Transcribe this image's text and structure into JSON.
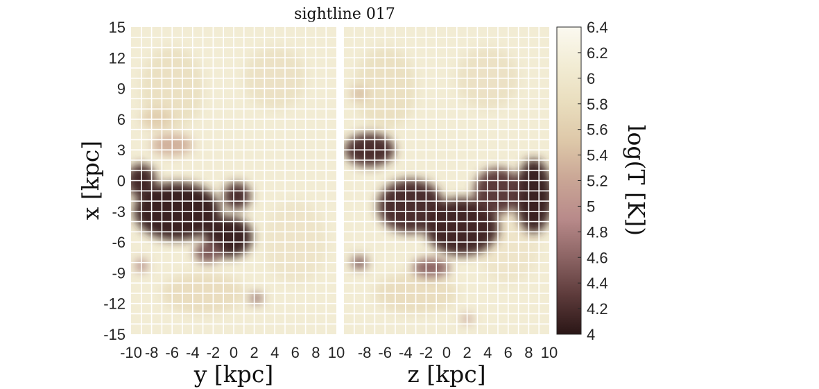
{
  "chart_data": {
    "type": "heatmap",
    "title": "sightline 017",
    "colorbar": {
      "label": "log(T [K])",
      "range": [
        4,
        6.4
      ],
      "ticks": [
        "4",
        "4.2",
        "4.4",
        "4.6",
        "4.8",
        "5",
        "5.2",
        "5.4",
        "5.6",
        "5.8",
        "6",
        "6.2",
        "6.4"
      ],
      "colormap": [
        "#2a1616",
        "#5c3a3a",
        "#8c6464",
        "#b88a8a",
        "#c9a595",
        "#ddc7a8",
        "#e9ddbd",
        "#f2ecd4",
        "#fbf9f0"
      ]
    },
    "grid": true,
    "panels": [
      {
        "xlabel": "y [kpc]",
        "ylabel": "x [kpc]",
        "xlim": [
          -10,
          10
        ],
        "ylim": [
          -15,
          15
        ],
        "xticks": [
          "-10",
          "-8",
          "-6",
          "-4",
          "-2",
          "0",
          "2",
          "4",
          "6",
          "8",
          "10"
        ],
        "yticks": [
          "-15",
          "-12",
          "-9",
          "-6",
          "-3",
          "0",
          "3",
          "6",
          "9",
          "12",
          "15"
        ],
        "cold_regions": [
          {
            "cx": -5.5,
            "cy": -3.0,
            "rx": 4.2,
            "ry": 2.8,
            "logT": 4.1
          },
          {
            "cx": -9.0,
            "cy": 0.0,
            "rx": 1.4,
            "ry": 1.6,
            "logT": 4.15
          },
          {
            "cx": -0.5,
            "cy": -5.5,
            "rx": 2.3,
            "ry": 2.0,
            "logT": 4.1
          },
          {
            "cx": 0.3,
            "cy": -1.5,
            "rx": 1.3,
            "ry": 1.3,
            "logT": 4.2
          },
          {
            "cx": -2.5,
            "cy": -7.0,
            "rx": 1.3,
            "ry": 1.0,
            "logT": 4.5
          },
          {
            "cx": -6.0,
            "cy": 3.5,
            "rx": 2.0,
            "ry": 1.0,
            "logT": 5.3
          },
          {
            "cx": -7.5,
            "cy": 6.0,
            "rx": 1.5,
            "ry": 1.0,
            "logT": 5.6
          },
          {
            "cx": 2.2,
            "cy": -11.5,
            "rx": 0.6,
            "ry": 0.5,
            "logT": 4.6
          },
          {
            "cx": -9.0,
            "cy": -8.3,
            "rx": 0.5,
            "ry": 0.6,
            "logT": 4.8
          }
        ]
      },
      {
        "xlabel": "z [kpc]",
        "ylabel": "",
        "xlim": [
          -10,
          10
        ],
        "ylim": [
          -15,
          15
        ],
        "xticks": [
          "-8",
          "-6",
          "-4",
          "-2",
          "0",
          "2",
          "4",
          "6",
          "8",
          "10"
        ],
        "yticks": [],
        "cold_regions": [
          {
            "cx": -7.5,
            "cy": 3.0,
            "rx": 2.4,
            "ry": 1.6,
            "logT": 4.2
          },
          {
            "cx": -3.5,
            "cy": -2.5,
            "rx": 3.2,
            "ry": 2.6,
            "logT": 4.2
          },
          {
            "cx": 1.5,
            "cy": -4.5,
            "rx": 3.6,
            "ry": 2.8,
            "logT": 4.15
          },
          {
            "cx": 8.5,
            "cy": -1.5,
            "rx": 1.8,
            "ry": 3.6,
            "logT": 4.1
          },
          {
            "cx": 5.0,
            "cy": -1.0,
            "rx": 2.3,
            "ry": 2.2,
            "logT": 4.3
          },
          {
            "cx": -1.5,
            "cy": -8.5,
            "rx": 1.8,
            "ry": 0.9,
            "logT": 4.6
          },
          {
            "cx": -8.5,
            "cy": -8.0,
            "rx": 0.8,
            "ry": 0.6,
            "logT": 4.5
          },
          {
            "cx": -8.5,
            "cy": 8.5,
            "rx": 0.8,
            "ry": 0.6,
            "logT": 5.4
          },
          {
            "cx": 2.0,
            "cy": -13.5,
            "rx": 0.5,
            "ry": 0.4,
            "logT": 5.0
          }
        ]
      }
    ]
  }
}
